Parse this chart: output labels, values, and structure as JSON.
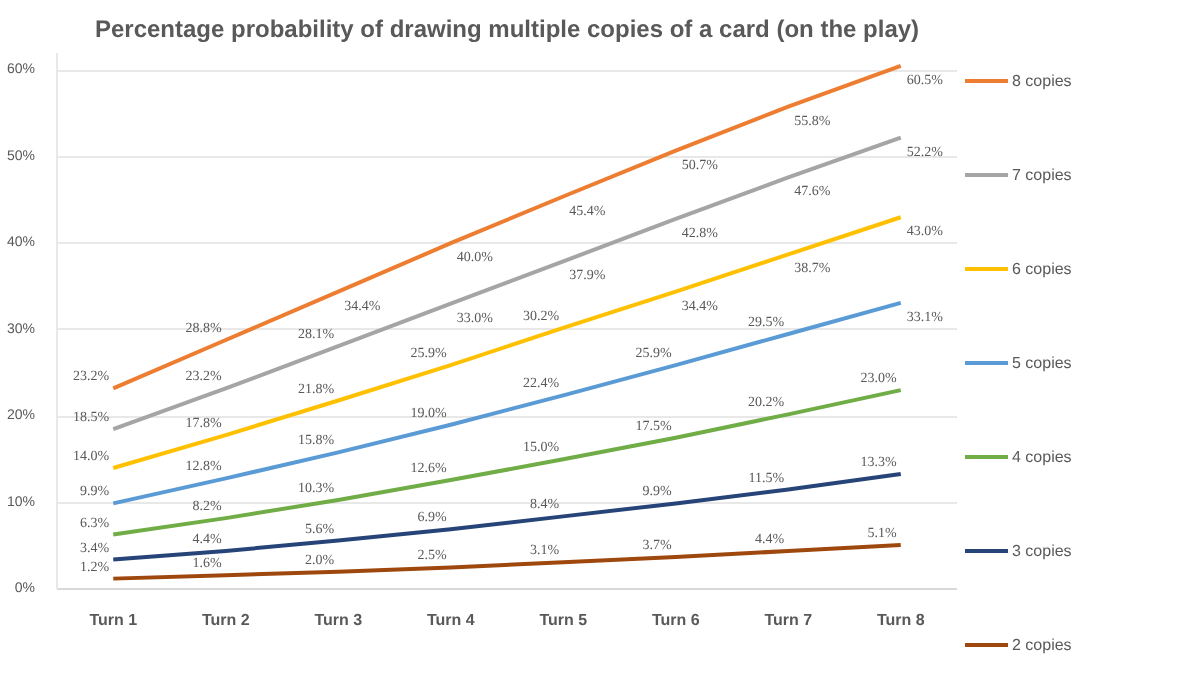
{
  "chart_data": {
    "type": "line",
    "title": "Percentage probability of drawing multiple copies of a card (on the play)",
    "categories": [
      "Turn 1",
      "Turn 2",
      "Turn 3",
      "Turn 4",
      "Turn 5",
      "Turn 6",
      "Turn 7",
      "Turn 8"
    ],
    "ylim": [
      0,
      62
    ],
    "yticks": [
      {
        "value": 0,
        "label": "0%"
      },
      {
        "value": 10,
        "label": "10%"
      },
      {
        "value": 20,
        "label": "20%"
      },
      {
        "value": 30,
        "label": "30%"
      },
      {
        "value": 40,
        "label": "40%"
      },
      {
        "value": 50,
        "label": "50%"
      },
      {
        "value": 60,
        "label": "60%"
      }
    ],
    "grid": "y",
    "legend": "right",
    "marker": "none",
    "line_style": "solid",
    "series": [
      {
        "name": "8 copies",
        "color": "#ed7d31",
        "values": [
          23.2,
          28.8,
          34.4,
          40.0,
          45.4,
          50.7,
          55.8,
          60.5
        ],
        "value_labels": [
          "23.2%",
          "28.8%",
          "34.4%",
          "40.0%",
          "45.4%",
          "50.7%",
          "55.8%",
          "60.5%"
        ]
      },
      {
        "name": "7 copies",
        "color": "#a5a5a5",
        "values": [
          18.5,
          23.2,
          28.1,
          33.0,
          37.9,
          42.8,
          47.6,
          52.2
        ],
        "value_labels": [
          "18.5%",
          "23.2%",
          "28.1%",
          "33.0%",
          "37.9%",
          "42.8%",
          "47.6%",
          "52.2%"
        ]
      },
      {
        "name": "6 copies",
        "color": "#ffc000",
        "values": [
          14.0,
          17.8,
          21.8,
          25.9,
          30.2,
          34.4,
          38.7,
          43.0
        ],
        "value_labels": [
          "14.0%",
          "17.8%",
          "21.8%",
          "25.9%",
          "30.2%",
          "34.4%",
          "38.7%",
          "43.0%"
        ]
      },
      {
        "name": "5 copies",
        "color": "#5b9bd5",
        "values": [
          9.9,
          12.8,
          15.8,
          19.0,
          22.4,
          25.9,
          29.5,
          33.1
        ],
        "value_labels": [
          "9.9%",
          "12.8%",
          "15.8%",
          "19.0%",
          "22.4%",
          "25.9%",
          "29.5%",
          "33.1%"
        ]
      },
      {
        "name": "4 copies",
        "color": "#70ad47",
        "values": [
          6.3,
          8.2,
          10.3,
          12.6,
          15.0,
          17.5,
          20.2,
          23.0
        ],
        "value_labels": [
          "6.3%",
          "8.2%",
          "10.3%",
          "12.6%",
          "15.0%",
          "17.5%",
          "20.2%",
          "23.0%"
        ]
      },
      {
        "name": "3 copies",
        "color": "#264478",
        "values": [
          3.4,
          4.4,
          5.6,
          6.9,
          8.4,
          9.9,
          11.5,
          13.3
        ],
        "value_labels": [
          "3.4%",
          "4.4%",
          "5.6%",
          "6.9%",
          "8.4%",
          "9.9%",
          "11.5%",
          "13.3%"
        ]
      },
      {
        "name": "2 copies",
        "color": "#9e480e",
        "values": [
          1.2,
          1.6,
          2.0,
          2.5,
          3.1,
          3.7,
          4.4,
          5.1
        ],
        "value_labels": [
          "1.2%",
          "1.6%",
          "2.0%",
          "2.5%",
          "3.1%",
          "3.7%",
          "4.4%",
          "5.1%"
        ]
      }
    ]
  }
}
